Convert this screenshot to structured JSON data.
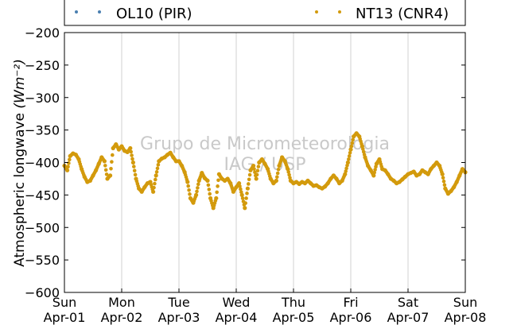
{
  "chart_data": {
    "type": "scatter",
    "title": "",
    "ylabel": "Atmospheric longwave",
    "ylabel_unit": "(Wm⁻²)",
    "xlabel": "",
    "ylim": [
      -600,
      -200
    ],
    "yticks": [
      -200,
      -250,
      -300,
      -350,
      -400,
      -450,
      -500,
      -550,
      -600
    ],
    "xticks": [
      {
        "day": "Sun",
        "date": "Apr-01"
      },
      {
        "day": "Mon",
        "date": "Apr-02"
      },
      {
        "day": "Tue",
        "date": "Apr-03"
      },
      {
        "day": "Wed",
        "date": "Apr-04"
      },
      {
        "day": "Thu",
        "date": "Apr-05"
      },
      {
        "day": "Fri",
        "date": "Apr-06"
      },
      {
        "day": "Sat",
        "date": "Apr-07"
      },
      {
        "day": "Sun",
        "date": "Apr-08"
      }
    ],
    "grid": "vertical",
    "legend_placement": "top",
    "legend": [
      {
        "name": "OL10 (PIR)",
        "color": "#4a7fb0"
      },
      {
        "name": "NT13 (CNR4)",
        "color": "#d39a0c"
      }
    ],
    "watermark": [
      "Grupo de Micrometeorologia",
      "IAG / USP"
    ],
    "series": [
      {
        "name": "NT13 (CNR4)",
        "color": "#d39a0c",
        "x_unit": "Apr day (decimal)",
        "x": [
          1.0,
          1.05,
          1.1,
          1.15,
          1.2,
          1.25,
          1.3,
          1.35,
          1.4,
          1.45,
          1.5,
          1.55,
          1.6,
          1.65,
          1.7,
          1.75,
          1.8,
          1.85,
          1.9,
          1.95,
          2.0,
          2.05,
          2.1,
          2.15,
          2.2,
          2.25,
          2.3,
          2.35,
          2.4,
          2.45,
          2.5,
          2.55,
          2.6,
          2.65,
          2.7,
          2.75,
          2.8,
          2.85,
          2.9,
          2.95,
          3.0,
          3.05,
          3.1,
          3.15,
          3.2,
          3.25,
          3.3,
          3.35,
          3.4,
          3.45,
          3.5,
          3.55,
          3.6,
          3.65,
          3.7,
          3.75,
          3.8,
          3.85,
          3.9,
          3.95,
          4.0,
          4.05,
          4.1,
          4.15,
          4.2,
          4.25,
          4.3,
          4.35,
          4.4,
          4.45,
          4.5,
          4.55,
          4.6,
          4.65,
          4.7,
          4.75,
          4.8,
          4.85,
          4.9,
          4.95,
          5.0,
          5.05,
          5.1,
          5.15,
          5.2,
          5.25,
          5.3,
          5.35,
          5.4,
          5.45,
          5.5,
          5.55,
          5.6,
          5.65,
          5.7,
          5.75,
          5.8,
          5.85,
          5.9,
          5.95,
          6.0,
          6.05,
          6.1,
          6.15,
          6.2,
          6.25,
          6.3,
          6.35,
          6.4,
          6.45,
          6.5,
          6.55,
          6.6,
          6.65,
          6.7,
          6.75,
          6.8,
          6.85,
          6.9,
          6.95,
          7.0,
          7.05,
          7.1,
          7.15,
          7.2,
          7.25,
          7.3,
          7.35,
          7.4,
          7.45,
          7.5,
          7.55,
          7.6,
          7.65,
          7.7,
          7.75,
          7.8,
          7.85,
          7.9,
          7.95,
          8.0
        ],
        "y": [
          -405,
          -412,
          -390,
          -386,
          -388,
          -395,
          -410,
          -422,
          -430,
          -428,
          -420,
          -412,
          -402,
          -392,
          -398,
          -425,
          -420,
          -378,
          -372,
          -380,
          -375,
          -382,
          -384,
          -378,
          -400,
          -425,
          -440,
          -445,
          -438,
          -432,
          -430,
          -445,
          -420,
          -398,
          -394,
          -392,
          -388,
          -385,
          -392,
          -398,
          -398,
          -405,
          -415,
          -430,
          -455,
          -462,
          -450,
          -428,
          -416,
          -424,
          -428,
          -455,
          -470,
          -455,
          -418,
          -425,
          -428,
          -425,
          -432,
          -445,
          -438,
          -432,
          -450,
          -470,
          -440,
          -412,
          -405,
          -425,
          -400,
          -395,
          -402,
          -410,
          -425,
          -432,
          -428,
          -405,
          -392,
          -398,
          -410,
          -428,
          -432,
          -430,
          -433,
          -430,
          -432,
          -428,
          -432,
          -436,
          -435,
          -438,
          -440,
          -437,
          -432,
          -425,
          -420,
          -425,
          -432,
          -428,
          -418,
          -400,
          -380,
          -360,
          -355,
          -360,
          -375,
          -392,
          -405,
          -412,
          -420,
          -402,
          -395,
          -410,
          -412,
          -418,
          -425,
          -428,
          -432,
          -430,
          -426,
          -422,
          -418,
          -416,
          -414,
          -420,
          -418,
          -412,
          -415,
          -418,
          -410,
          -405,
          -400,
          -405,
          -418,
          -440,
          -448,
          -444,
          -438,
          -430,
          -420,
          -410,
          -415
        ]
      },
      {
        "name": "OL10 (PIR)",
        "color": "#4a7fb0",
        "x": [],
        "y": []
      }
    ]
  }
}
